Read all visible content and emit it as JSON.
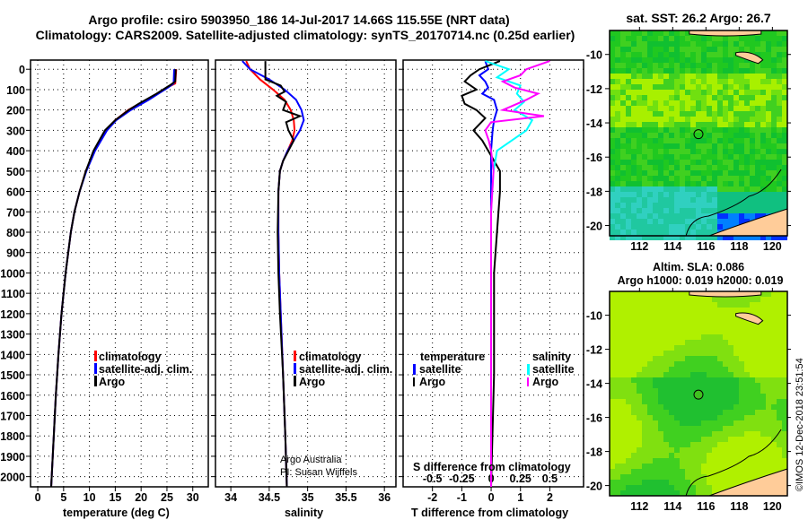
{
  "title": {
    "line1": "Argo profile: csiro 5903950_186 14-Jul-2017 14.66S 115.55E (NRT data)",
    "line2": "Climatology: CARS2009. Satellite-adjusted climatology: synTS_20170714.nc (0.25d earlier)"
  },
  "colors": {
    "climatology": "#ff0000",
    "satellite": "#0000ff",
    "argo": "#000000",
    "sal_satellite": "#00ffff",
    "sal_argo": "#ff00ff"
  },
  "chart_data": [
    {
      "type": "line",
      "id": "temperature",
      "xlabel": "temperature (deg C)",
      "ylabel": "depth",
      "xlim": [
        -1.4,
        33
      ],
      "ylim": [
        2050,
        -45
      ],
      "xticks": [
        0,
        5,
        10,
        15,
        20,
        25,
        30
      ],
      "yticks": [
        0,
        100,
        200,
        300,
        400,
        500,
        600,
        700,
        800,
        900,
        1000,
        1100,
        1200,
        1300,
        1400,
        1500,
        1600,
        1700,
        1800,
        1900,
        2000
      ],
      "grid": true,
      "legend": {
        "placement": "bottom-right",
        "entries": [
          "climatology",
          "satellite-adj. clim.",
          "Argo"
        ]
      },
      "series": [
        {
          "name": "climatology",
          "color": "#ff0000",
          "depth": [
            0,
            70,
            90,
            150,
            200,
            250,
            300,
            400,
            500,
            600,
            700,
            800,
            1000,
            1200,
            1400,
            1600,
            1800,
            2050
          ],
          "values": [
            26.8,
            26.6,
            25,
            21,
            17.5,
            15,
            13.2,
            11,
            9.3,
            8.1,
            7.1,
            6.4,
            5.4,
            4.6,
            4.0,
            3.5,
            3.1,
            2.6
          ]
        },
        {
          "name": "satellite-adj. clim.",
          "color": "#0000ff",
          "depth": [
            0,
            70,
            90,
            150,
            200,
            250,
            300,
            400,
            500,
            600,
            700,
            800,
            1000,
            1200,
            1400,
            1600,
            1800,
            2050
          ],
          "values": [
            26.4,
            26.3,
            25.2,
            21.5,
            18,
            15.2,
            13.4,
            11.1,
            9.4,
            8.1,
            7.1,
            6.4,
            5.4,
            4.6,
            4.0,
            3.5,
            3.1,
            2.6
          ]
        },
        {
          "name": "Argo",
          "color": "#000000",
          "depth": [
            0,
            60,
            80,
            120,
            170,
            200,
            250,
            300,
            400,
            500,
            600,
            700,
            800,
            1000,
            1200,
            1400,
            1600,
            1800,
            2050
          ],
          "values": [
            26.7,
            26.6,
            25.5,
            23,
            19.5,
            17.6,
            15,
            13,
            10.8,
            9.3,
            8.1,
            7.1,
            6.4,
            5.4,
            4.6,
            4.0,
            3.5,
            3.1,
            2.6
          ]
        }
      ]
    },
    {
      "type": "line",
      "id": "salinity",
      "xlabel": "salinity",
      "xlim": [
        33.8,
        36.15
      ],
      "ylim": [
        2050,
        -45
      ],
      "xticks": [
        34,
        34.5,
        35,
        35.5,
        36
      ],
      "xticklabels": [
        "34",
        "34.5",
        "35",
        "35.5",
        "36"
      ],
      "grid": true,
      "legend": {
        "placement": "bottom-right",
        "entries": [
          "climatology",
          "satellite-adj. clim.",
          "Argo"
        ]
      },
      "annotation": [
        "Argo Australia",
        "PI: Susan Wijffels"
      ],
      "series": [
        {
          "name": "climatology",
          "color": "#ff0000",
          "depth": [
            -40,
            0,
            50,
            100,
            150,
            200,
            250,
            300,
            350,
            400,
            450,
            500,
            600,
            800,
            1000,
            1200,
            1500,
            1800,
            2050
          ],
          "values": [
            34.2,
            34.25,
            34.38,
            34.55,
            34.7,
            34.78,
            34.82,
            34.83,
            34.8,
            34.74,
            34.68,
            34.64,
            34.62,
            34.62,
            34.63,
            34.65,
            34.68,
            34.71,
            34.73
          ]
        },
        {
          "name": "satellite-adj. clim.",
          "color": "#0000ff",
          "depth": [
            -40,
            0,
            50,
            100,
            150,
            200,
            250,
            300,
            350,
            400,
            450,
            500,
            600,
            800,
            1000,
            1200,
            1500,
            1800,
            2050
          ],
          "values": [
            34.15,
            34.25,
            34.5,
            34.7,
            34.85,
            34.92,
            34.95,
            34.9,
            34.82,
            34.74,
            34.68,
            34.64,
            34.62,
            34.62,
            34.63,
            34.65,
            34.68,
            34.71,
            34.73
          ]
        },
        {
          "name": "Argo",
          "color": "#000000",
          "depth": [
            -40,
            50,
            80,
            110,
            130,
            160,
            200,
            230,
            260,
            300,
            350,
            400,
            450,
            500,
            600,
            800,
            1000,
            1200,
            1500,
            1800,
            2050
          ],
          "values": [
            34.45,
            34.45,
            34.65,
            34.7,
            34.6,
            34.72,
            34.68,
            34.9,
            34.72,
            34.75,
            34.82,
            34.75,
            34.68,
            34.64,
            34.62,
            34.61,
            34.62,
            34.64,
            34.68,
            34.71,
            34.73
          ]
        }
      ]
    },
    {
      "type": "line",
      "id": "difference",
      "xlabel": "T difference from climatology",
      "xlabel2": "S difference from climatology",
      "xlim": [
        -3,
        3.15
      ],
      "xticks": [
        -2,
        -1,
        0,
        1,
        2
      ],
      "xticklabels": [
        "-2",
        "-1",
        "0",
        "1",
        "2"
      ],
      "sticks": [
        -0.5,
        -0.25,
        0,
        0.25,
        0.5
      ],
      "sticklabels": [
        "-0.5",
        "-0.25",
        "0",
        "0.25",
        "0.5"
      ],
      "ylim": [
        2050,
        -45
      ],
      "grid": true,
      "legend": {
        "placement": "bottom",
        "temperature_title": "temperature",
        "salinity_title": "salinity",
        "entries": [
          "satellite",
          "Argo"
        ]
      },
      "series": [
        {
          "name": "temperature satellite",
          "color": "#0000ff",
          "depth": [
            -40,
            0,
            30,
            60,
            90,
            120,
            150,
            200,
            250,
            300,
            400,
            600,
            1000,
            2050
          ],
          "values": [
            -0.2,
            -0.1,
            -0.4,
            -0.2,
            -0.1,
            -0.3,
            0.1,
            0.2,
            0.1,
            0.05,
            0,
            0,
            0,
            0
          ]
        },
        {
          "name": "temperature Argo",
          "color": "#000000",
          "depth": [
            -40,
            0,
            30,
            60,
            100,
            130,
            170,
            200,
            240,
            300,
            350,
            400,
            500,
            600,
            800,
            1000,
            1500,
            2050
          ],
          "values": [
            0.3,
            -0.4,
            -0.7,
            -0.9,
            -0.5,
            -1.0,
            -0.9,
            -0.5,
            -0.2,
            -0.6,
            -0.3,
            -0.1,
            0.3,
            0.3,
            0.2,
            0.1,
            0.1,
            0
          ]
        },
        {
          "name": "salinity satellite",
          "color": "#00ffff",
          "depth": [
            -40,
            0,
            40,
            80,
            120,
            160,
            200,
            250,
            300,
            400,
            500,
            700,
            1000,
            2050
          ],
          "values": [
            -0.05,
            0.15,
            0.05,
            0.25,
            0.22,
            0.28,
            0.2,
            0.35,
            0.3,
            0.05,
            0.02,
            0,
            0,
            0
          ]
        },
        {
          "name": "salinity Argo",
          "color": "#ff00ff",
          "depth": [
            -40,
            0,
            30,
            60,
            90,
            120,
            150,
            200,
            230,
            260,
            300,
            350,
            400,
            500,
            700,
            1000,
            2050
          ],
          "values": [
            0.5,
            0.3,
            0.25,
            0.1,
            0.2,
            0.4,
            0.3,
            0.1,
            0.45,
            0.0,
            -0.05,
            -0.02,
            0,
            0.02,
            0,
            0,
            0
          ]
        }
      ]
    },
    {
      "type": "heatmap",
      "id": "sst-map",
      "title": "sat. SST: 26.2 Argo: 26.7",
      "xlim": [
        110.2,
        120.9
      ],
      "ylim": [
        -20.6,
        -8.6
      ],
      "xticks": [
        112,
        114,
        116,
        118,
        120
      ],
      "yticks": [
        -10,
        -12,
        -14,
        -16,
        -18,
        -20
      ],
      "marker": {
        "lon": 115.55,
        "lat": -14.66
      }
    },
    {
      "type": "heatmap",
      "id": "sla-map",
      "title": "Altim. SLA: 0.086",
      "subtitle": "Argo h1000: 0.019 h2000: 0.019",
      "xlim": [
        110.2,
        120.9
      ],
      "ylim": [
        -20.6,
        -8.6
      ],
      "xticks": [
        112,
        114,
        116,
        118,
        120
      ],
      "yticks": [
        -10,
        -12,
        -14,
        -16,
        -18,
        -20
      ],
      "marker": {
        "lon": 115.55,
        "lat": -14.66
      }
    }
  ],
  "credit": "©IMOS 12-Dec-2018 23:51:54"
}
